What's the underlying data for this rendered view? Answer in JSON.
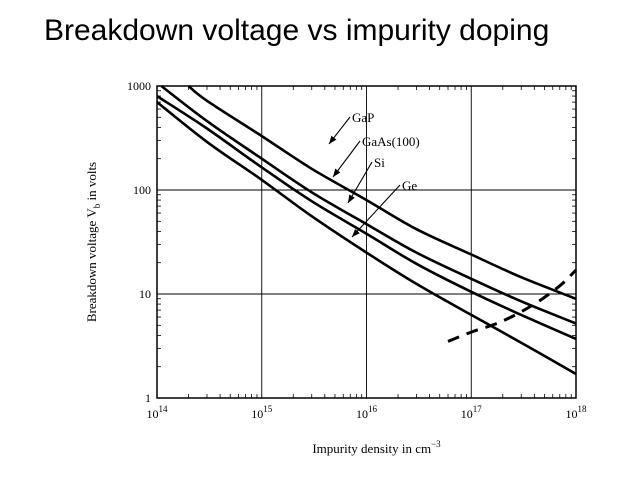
{
  "slide": {
    "title": "Breakdown voltage vs impurity doping"
  },
  "chart_data": {
    "type": "line",
    "title": "Breakdown voltage vs impurity doping",
    "xlabel": "Impurity density in cm",
    "xlabel_sup": "−3",
    "ylabel": "Breakdown voltage V",
    "ylabel_sub": "b",
    "ylabel_tail": " in volts",
    "x_scale": "log",
    "y_scale": "log",
    "xlim": [
      100000000000000.0,
      1e+18
    ],
    "ylim": [
      1,
      1000
    ],
    "grid": true,
    "x_ticks": [
      {
        "value": 100000000000000.0,
        "base": "10",
        "exp": "14"
      },
      {
        "value": 1000000000000000.0,
        "base": "10",
        "exp": "15"
      },
      {
        "value": 1e+16,
        "base": "10",
        "exp": "16"
      },
      {
        "value": 1e+17,
        "base": "10",
        "exp": "17"
      },
      {
        "value": 1e+18,
        "base": "10",
        "exp": "18"
      }
    ],
    "y_ticks": [
      {
        "value": 1,
        "label": "1"
      },
      {
        "value": 10,
        "label": "10"
      },
      {
        "value": 100,
        "label": "100"
      },
      {
        "value": 1000,
        "label": "1000"
      }
    ],
    "series": [
      {
        "name": "GaP",
        "style": "solid",
        "x": [
          200000000000000.0,
          300000000000000.0,
          1000000000000000.0,
          3000000000000000.0,
          1e+16,
          3e+16,
          1e+17,
          3e+17,
          1e+18
        ],
        "y": [
          1000,
          720,
          330,
          160,
          80,
          42,
          24,
          14.5,
          9
        ]
      },
      {
        "name": "GaAs(100)",
        "style": "solid",
        "x": [
          110000000000000.0,
          300000000000000.0,
          1000000000000000.0,
          3000000000000000.0,
          1e+16,
          3e+16,
          1e+17,
          3e+17,
          1e+18
        ],
        "y": [
          1000,
          460,
          200,
          95,
          47,
          25,
          14,
          8.5,
          5.2
        ]
      },
      {
        "name": "Si",
        "style": "solid",
        "x": [
          100000000000000.0,
          300000000000000.0,
          1000000000000000.0,
          3000000000000000.0,
          1e+16,
          3e+16,
          1e+17,
          3e+17,
          1e+18
        ],
        "y": [
          800,
          390,
          165,
          78,
          38,
          19.5,
          10.5,
          6.3,
          3.7
        ]
      },
      {
        "name": "Ge",
        "style": "solid",
        "x": [
          100000000000000.0,
          300000000000000.0,
          1000000000000000.0,
          3000000000000000.0,
          1e+16,
          3e+16,
          1e+17,
          3e+17,
          1e+18
        ],
        "y": [
          700,
          290,
          125,
          56,
          25,
          12.5,
          6.3,
          3.4,
          1.7
        ]
      },
      {
        "name": "",
        "style": "dashed",
        "x": [
          6e+16,
          1e+17,
          2e+17,
          4e+17,
          7e+17,
          1e+18
        ],
        "y": [
          3.5,
          4.3,
          5.5,
          8,
          12,
          17
        ]
      }
    ],
    "annotations": [
      {
        "text": "GaP",
        "target": "GaP"
      },
      {
        "text": "GaAs(100)",
        "target": "GaAs(100)"
      },
      {
        "text": "Si",
        "target": "Si"
      },
      {
        "text": "Ge",
        "target": "Ge"
      }
    ]
  }
}
